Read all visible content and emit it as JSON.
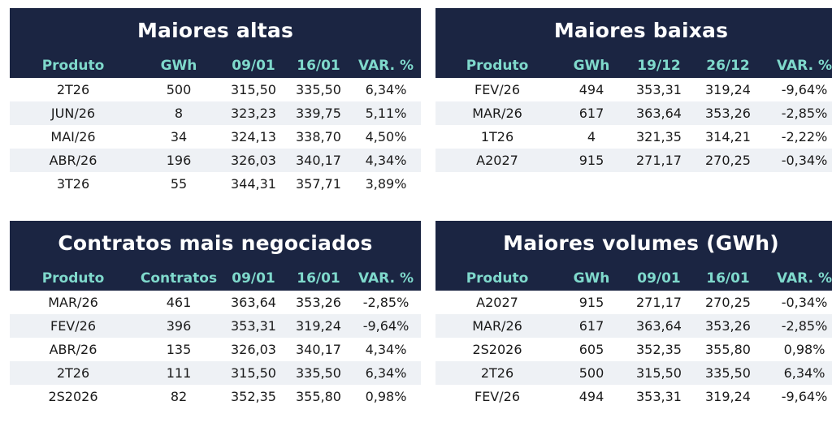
{
  "panels": [
    {
      "title": "Maiores altas",
      "headers": [
        "Produto",
        "GWh",
        "09/01",
        "16/01",
        "VAR. %"
      ],
      "rows": [
        [
          "2T26",
          "500",
          "315,50",
          "335,50",
          "6,34%"
        ],
        [
          "JUN/26",
          "8",
          "323,23",
          "339,75",
          "5,11%"
        ],
        [
          "MAI/26",
          "34",
          "324,13",
          "338,70",
          "4,50%"
        ],
        [
          "ABR/26",
          "196",
          "326,03",
          "340,17",
          "4,34%"
        ],
        [
          "3T26",
          "55",
          "344,31",
          "357,71",
          "3,89%"
        ]
      ]
    },
    {
      "title": "Maiores baixas",
      "headers": [
        "Produto",
        "GWh",
        "19/12",
        "26/12",
        "VAR. %"
      ],
      "rows": [
        [
          "FEV/26",
          "494",
          "353,31",
          "319,24",
          "-9,64%"
        ],
        [
          "MAR/26",
          "617",
          "363,64",
          "353,26",
          "-2,85%"
        ],
        [
          "1T26",
          "4",
          "321,35",
          "314,21",
          "-2,22%"
        ],
        [
          "A2027",
          "915",
          "271,17",
          "270,25",
          "-0,34%"
        ]
      ]
    },
    {
      "title": "Contratos mais negociados",
      "headers": [
        "Produto",
        "Contratos",
        "09/01",
        "16/01",
        "VAR. %"
      ],
      "rows": [
        [
          "MAR/26",
          "461",
          "363,64",
          "353,26",
          "-2,85%"
        ],
        [
          "FEV/26",
          "396",
          "353,31",
          "319,24",
          "-9,64%"
        ],
        [
          "ABR/26",
          "135",
          "326,03",
          "340,17",
          "4,34%"
        ],
        [
          "2T26",
          "111",
          "315,50",
          "335,50",
          "6,34%"
        ],
        [
          "2S2026",
          "82",
          "352,35",
          "355,80",
          "0,98%"
        ]
      ]
    },
    {
      "title": "Maiores volumes (GWh)",
      "headers": [
        "Produto",
        "GWh",
        "09/01",
        "16/01",
        "VAR. %"
      ],
      "rows": [
        [
          "A2027",
          "915",
          "271,17",
          "270,25",
          "-0,34%"
        ],
        [
          "MAR/26",
          "617",
          "363,64",
          "353,26",
          "-2,85%"
        ],
        [
          "2S2026",
          "605",
          "352,35",
          "355,80",
          "0,98%"
        ],
        [
          "2T26",
          "500",
          "315,50",
          "335,50",
          "6,34%"
        ],
        [
          "FEV/26",
          "494",
          "353,31",
          "319,24",
          "-9,64%"
        ]
      ]
    }
  ],
  "colors": {
    "header_bg": "#1b2542",
    "header_text": "#ffffff",
    "column_header_text": "#7fd9cc",
    "alt_row_bg": "#eef1f5"
  }
}
